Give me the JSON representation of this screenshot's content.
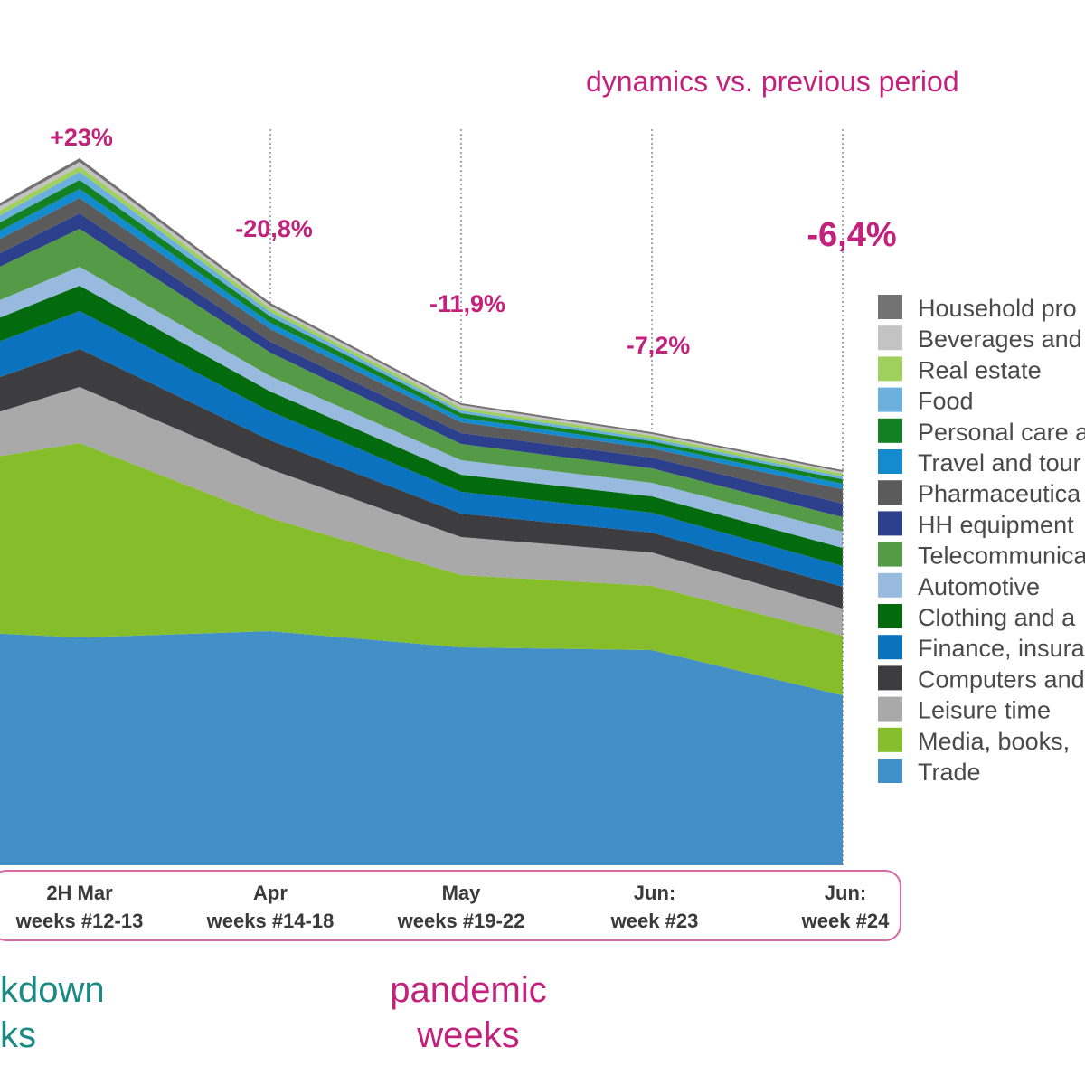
{
  "subtitle": "dynamics vs. previous period",
  "phases": {
    "left_line1": "kdown",
    "left_line2": "ks",
    "middle_line1": "pandemic",
    "middle_line2": "weeks"
  },
  "colors": {
    "accent_pink": "#c2227c",
    "accent_teal": "#1b8a84",
    "axis_box": "#d56aa4"
  },
  "chart_data": {
    "type": "area",
    "stacked": true,
    "categories": [
      [
        "",
        ""
      ],
      [
        "2H Mar",
        "weeks #12-13"
      ],
      [
        "Apr",
        "weeks #14-18"
      ],
      [
        "May",
        "weeks #19-22"
      ],
      [
        "Jun:",
        "week #23"
      ],
      [
        "Jun:",
        "week #24"
      ]
    ],
    "annotations": [
      "",
      "+23%",
      "-20,8%",
      "-11,9%",
      "-7,2%",
      "-6,4%"
    ],
    "series": [
      {
        "name": "Trade",
        "color": "#4390c9",
        "values": [
          262,
          252,
          259,
          241,
          238,
          188
        ]
      },
      {
        "name": "Media, books,",
        "color": "#86bd2a",
        "values": [
          170,
          215,
          125,
          80,
          71,
          66
        ]
      },
      {
        "name": "Leisure time",
        "color": "#a9a9a9",
        "values": [
          32,
          62,
          54,
          42,
          37,
          30
        ]
      },
      {
        "name": "Computers and",
        "color": "#3d3c3e",
        "values": [
          33,
          42,
          32,
          26,
          22,
          24
        ]
      },
      {
        "name": "Finance, insura",
        "color": "#0b72bf",
        "values": [
          36,
          42,
          32,
          24,
          22,
          23
        ]
      },
      {
        "name": "Clothing and a",
        "color": "#036b0d",
        "values": [
          24,
          28,
          22,
          19,
          18,
          20
        ]
      },
      {
        "name": "Automotive",
        "color": "#98badf",
        "values": [
          17,
          21,
          17,
          16,
          15,
          18
        ]
      },
      {
        "name": "Telecommunica",
        "color": "#559a47",
        "values": [
          30,
          42,
          26,
          18,
          16,
          16
        ]
      },
      {
        "name": "HH equipment",
        "color": "#2b3f8d",
        "values": [
          12,
          17,
          12,
          12,
          12,
          15
        ]
      },
      {
        "name": "Pharmaceutica",
        "color": "#5b5b5b",
        "values": [
          14,
          17,
          14,
          12,
          10,
          16
        ]
      },
      {
        "name": "Travel and tour",
        "color": "#148bcc",
        "values": [
          8,
          10,
          7,
          5,
          4,
          6
        ]
      },
      {
        "name": "Personal care a",
        "color": "#138024",
        "values": [
          8,
          10,
          7,
          5,
          4,
          5
        ]
      },
      {
        "name": "Food",
        "color": "#6cb1de",
        "values": [
          6,
          9,
          5,
          3,
          3,
          3
        ]
      },
      {
        "name": "Real estate",
        "color": "#9fcf5c",
        "values": [
          5,
          6,
          4,
          3,
          3,
          3
        ]
      },
      {
        "name": "Beverages and",
        "color": "#c3c3c3",
        "values": [
          4,
          5,
          3,
          3,
          2,
          2
        ]
      },
      {
        "name": "Household pro",
        "color": "#727272",
        "values": [
          3,
          4,
          3,
          2,
          2,
          2
        ]
      }
    ],
    "legend": [
      {
        "label": "Household pro",
        "color": "#727272"
      },
      {
        "label": "Beverages and",
        "color": "#c3c3c3"
      },
      {
        "label": "Real estate",
        "color": "#9fcf5c"
      },
      {
        "label": "Food",
        "color": "#6cb1de"
      },
      {
        "label": "Personal care a",
        "color": "#138024"
      },
      {
        "label": "Travel and tour",
        "color": "#148bcc"
      },
      {
        "label": "Pharmaceutica",
        "color": "#5b5b5b"
      },
      {
        "label": "HH equipment",
        "color": "#2b3f8d"
      },
      {
        "label": "Telecommunica",
        "color": "#559a47"
      },
      {
        "label": "Automotive",
        "color": "#98badf"
      },
      {
        "label": "Clothing and a",
        "color": "#036b0d"
      },
      {
        "label": "Finance, insura",
        "color": "#0b72bf"
      },
      {
        "label": "Computers and",
        "color": "#3d3c3e"
      },
      {
        "label": "Leisure time",
        "color": "#a9a9a9"
      },
      {
        "label": "Media, books,",
        "color": "#86bd2a"
      },
      {
        "label": "Trade",
        "color": "#3f90c9"
      }
    ],
    "legend_position": "right",
    "grid": false
  }
}
